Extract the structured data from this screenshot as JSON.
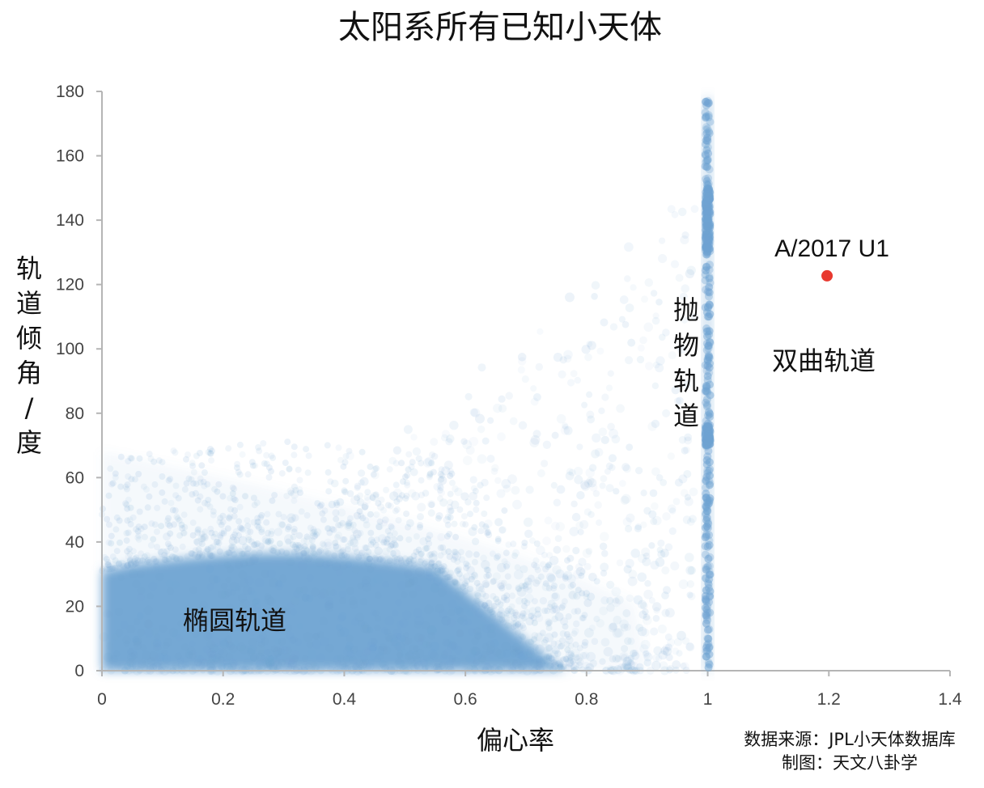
{
  "chart_data": {
    "type": "scatter",
    "title": "太阳系所有已知小天体",
    "xlabel": "偏心率",
    "ylabel_chars": [
      "轨",
      "道",
      "倾",
      "角",
      "/",
      "度"
    ],
    "xlim": [
      0,
      1.4
    ],
    "ylim": [
      0,
      180
    ],
    "x_ticks": [
      "0",
      "0.2",
      "0.4",
      "0.6",
      "0.8",
      "1",
      "1.2",
      "1.4"
    ],
    "x_tick_values": [
      0,
      0.2,
      0.4,
      0.6,
      0.8,
      1.0,
      1.2,
      1.4
    ],
    "y_ticks": [
      "0",
      "20",
      "40",
      "60",
      "80",
      "100",
      "120",
      "140",
      "160",
      "180"
    ],
    "y_tick_values": [
      0,
      20,
      40,
      60,
      80,
      100,
      120,
      140,
      160,
      180
    ],
    "grid": false,
    "series": [
      {
        "color": "#6fa3d2",
        "regions": [
          {
            "label": "椭圆轨道",
            "x": 0.23,
            "y": 14
          },
          {
            "label_chars": [
              "抛",
              "物",
              "轨",
              "道"
            ],
            "x": 0.97,
            "y": 92
          },
          {
            "label": "双曲轨道",
            "x": 1.2,
            "y": 97
          }
        ]
      },
      {
        "color": "#e8392f",
        "points": [
          {
            "x": 1.197,
            "y": 122.7,
            "label": "A/2017 U1"
          }
        ]
      }
    ],
    "credits": [
      "数据来源：JPL小天体数据库",
      "制图：天文八卦学"
    ]
  }
}
